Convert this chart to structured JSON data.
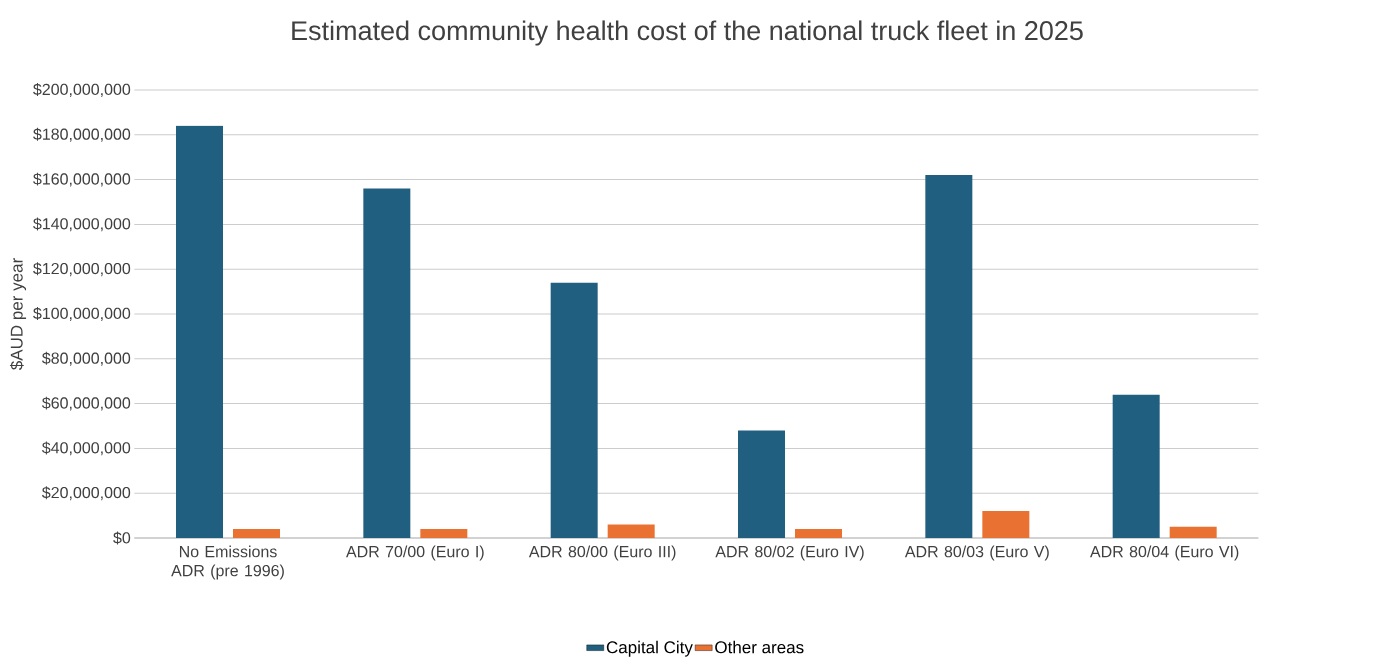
{
  "chart_data": {
    "type": "bar",
    "title": "Estimated community health cost of the national truck fleet in 2025",
    "ylabel": "$AUD per year",
    "categories": [
      "No Emissions ADR (pre 1996)",
      "ADR 70/00 (Euro I)",
      "ADR 80/00 (Euro III)",
      "ADR 80/02 (Euro IV)",
      "ADR 80/03 (Euro V)",
      "ADR 80/04 (Euro VI)"
    ],
    "series": [
      {
        "name": "Capital City",
        "color": "#215f80",
        "values": [
          184000000,
          156000000,
          114000000,
          48000000,
          162000000,
          64000000
        ]
      },
      {
        "name": "Other areas",
        "color": "#e97132",
        "values": [
          4000000,
          4000000,
          6000000,
          4000000,
          12000000,
          5000000
        ]
      }
    ],
    "ylim": [
      0,
      200000000
    ],
    "yticks": [
      {
        "value": 0,
        "label": "$0"
      },
      {
        "value": 20000000,
        "label": "$20,000,000"
      },
      {
        "value": 40000000,
        "label": "$40,000,000"
      },
      {
        "value": 60000000,
        "label": "$60,000,000"
      },
      {
        "value": 80000000,
        "label": "$80,000,000"
      },
      {
        "value": 100000000,
        "label": "$100,000,000"
      },
      {
        "value": 120000000,
        "label": "$120,000,000"
      },
      {
        "value": 140000000,
        "label": "$140,000,000"
      },
      {
        "value": 160000000,
        "label": "$160,000,000"
      },
      {
        "value": 180000000,
        "label": "$180,000,000"
      },
      {
        "value": 200000000,
        "label": "$200,000,000"
      }
    ],
    "grid": "y",
    "legend": "bottom"
  }
}
